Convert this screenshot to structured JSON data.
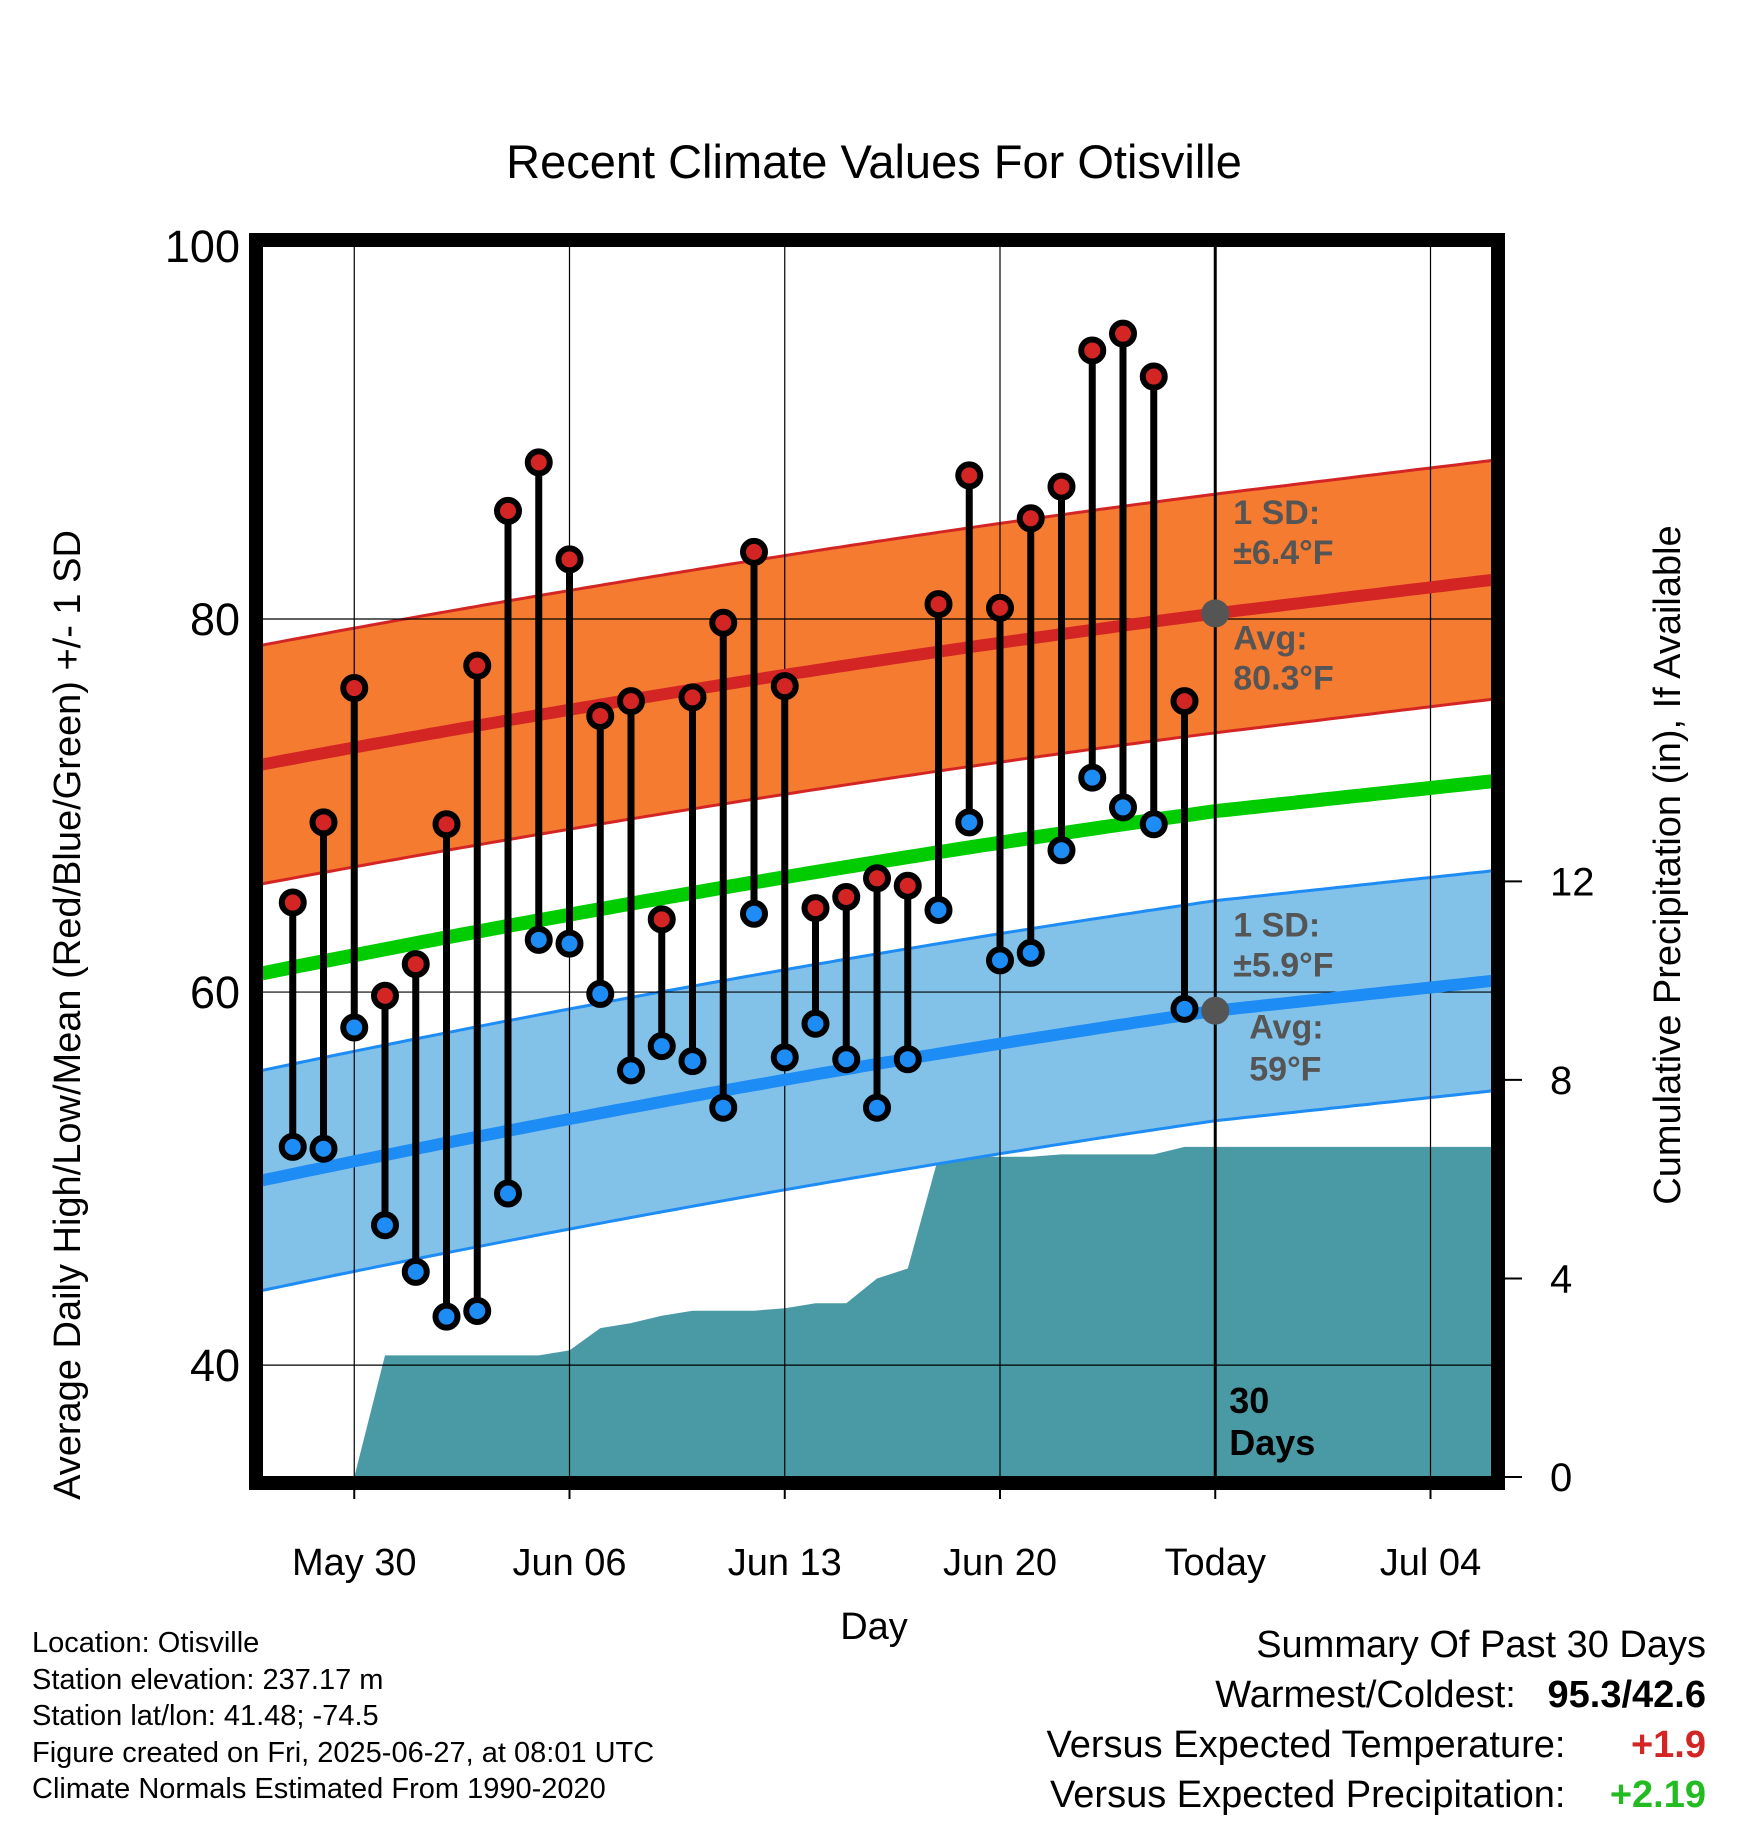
{
  "chart_data": {
    "type": "line",
    "title": "Recent Climate Values For Otisville",
    "xlabel": "Day",
    "ylabel": "Average Daily High/Low/Mean (Red/Blue/Green) +/- 1 SD",
    "y2label": "Cumulative Precipitation (in), If Available",
    "ylim": [
      34,
      100
    ],
    "y2lim": [
      0,
      24.8
    ],
    "y_ticks": [
      "40",
      "60",
      "80",
      "100"
    ],
    "y2_ticks": [
      "0",
      "4",
      "8",
      "12"
    ],
    "x_ticks": [
      "May 30",
      "Jun 06",
      "Jun 13",
      "Jun 20",
      "Today",
      "Jul 04"
    ],
    "x_tick_days": [
      "2025-05-30",
      "2025-06-06",
      "2025-06-13",
      "2025-06-20",
      "2025-06-27",
      "2025-07-04"
    ],
    "xlim": [
      "2025-05-27",
      "2025-07-06"
    ],
    "grid": true,
    "today": "2025-06-27",
    "period_label": [
      "30",
      "Days"
    ],
    "observed": {
      "dates": [
        "2025-05-28",
        "2025-05-29",
        "2025-05-30",
        "2025-05-31",
        "2025-06-01",
        "2025-06-02",
        "2025-06-03",
        "2025-06-04",
        "2025-06-05",
        "2025-06-06",
        "2025-06-07",
        "2025-06-08",
        "2025-06-09",
        "2025-06-10",
        "2025-06-11",
        "2025-06-12",
        "2025-06-13",
        "2025-06-14",
        "2025-06-15",
        "2025-06-16",
        "2025-06-17",
        "2025-06-18",
        "2025-06-19",
        "2025-06-20",
        "2025-06-21",
        "2025-06-22",
        "2025-06-23",
        "2025-06-24",
        "2025-06-25",
        "2025-06-26"
      ],
      "high": [
        64.8,
        69.1,
        76.3,
        59.8,
        61.5,
        69.0,
        77.5,
        85.8,
        88.4,
        83.2,
        74.8,
        75.6,
        63.9,
        75.8,
        79.8,
        83.6,
        76.4,
        64.5,
        65.1,
        66.1,
        65.7,
        80.8,
        87.7,
        80.6,
        85.4,
        87.1,
        94.4,
        95.3,
        93.0,
        75.6
      ],
      "low": [
        51.7,
        51.6,
        58.1,
        47.5,
        45.0,
        42.6,
        42.9,
        49.2,
        62.8,
        62.6,
        59.9,
        55.8,
        57.1,
        56.3,
        53.8,
        64.2,
        56.5,
        58.3,
        56.4,
        53.8,
        56.4,
        64.4,
        69.1,
        61.7,
        62.1,
        67.6,
        71.5,
        69.9,
        69.0,
        59.1
      ]
    },
    "normals": {
      "dates": [
        "2025-05-27",
        "2025-06-27",
        "2025-07-06"
      ],
      "high_mean": [
        72.2,
        80.3,
        82.1
      ],
      "high_sd": 6.4,
      "low_mean": [
        49.9,
        59.0,
        60.6
      ],
      "low_sd": 5.9,
      "mean": [
        61.0,
        69.7,
        71.3
      ]
    },
    "precip": {
      "dates": [
        "2025-05-30",
        "2025-05-31",
        "2025-06-01",
        "2025-06-02",
        "2025-06-03",
        "2025-06-04",
        "2025-06-05",
        "2025-06-06",
        "2025-06-07",
        "2025-06-08",
        "2025-06-09",
        "2025-06-10",
        "2025-06-11",
        "2025-06-12",
        "2025-06-13",
        "2025-06-14",
        "2025-06-15",
        "2025-06-16",
        "2025-06-17",
        "2025-06-18",
        "2025-06-19",
        "2025-06-20",
        "2025-06-21",
        "2025-06-22",
        "2025-06-23",
        "2025-06-24",
        "2025-06-25",
        "2025-06-26",
        "2025-06-27",
        "2025-07-06"
      ],
      "cumulative": [
        0,
        2.45,
        2.45,
        2.45,
        2.45,
        2.45,
        2.45,
        2.55,
        3.0,
        3.1,
        3.25,
        3.35,
        3.35,
        3.35,
        3.4,
        3.5,
        3.5,
        4.0,
        4.2,
        6.45,
        6.45,
        6.45,
        6.45,
        6.5,
        6.5,
        6.5,
        6.5,
        6.65,
        6.65,
        6.65
      ]
    },
    "annotations": {
      "high_sd": [
        "1 SD:",
        "±6.4°F"
      ],
      "high_avg": [
        "Avg:",
        "80.3°F"
      ],
      "low_sd": [
        "1 SD:",
        "±5.9°F"
      ],
      "low_avg": [
        "Avg:",
        "59°F"
      ]
    },
    "colors": {
      "high_band": "#f47b30",
      "high_line": "#d42525",
      "low_band": "#82c1e8",
      "low_line": "#1e8cf5",
      "mean_line": "#00cc00",
      "precip": "#4a9aa5",
      "high_dot": "#d42525",
      "low_dot": "#1e8cf5",
      "annotation": "#555555"
    }
  },
  "info": {
    "location": "Location: Otisville",
    "elevation": "Station elevation: 237.17 m",
    "latlon": "Station lat/lon: 41.48; -74.5",
    "created": "Figure created on Fri, 2025-06-27, at 08:01 UTC",
    "normals": "Climate Normals Estimated From 1990-2020"
  },
  "summary": {
    "title": "Summary Of Past 30 Days",
    "warm_cold_label": "Warmest/Coldest:",
    "warm_cold_value": "95.3/42.6",
    "temp_label": "Versus Expected Temperature:",
    "temp_value": "+1.9",
    "temp_color": "#d42525",
    "precip_label": "Versus Expected Precipitation:",
    "precip_value": "+2.19",
    "precip_color": "#22bb22"
  }
}
